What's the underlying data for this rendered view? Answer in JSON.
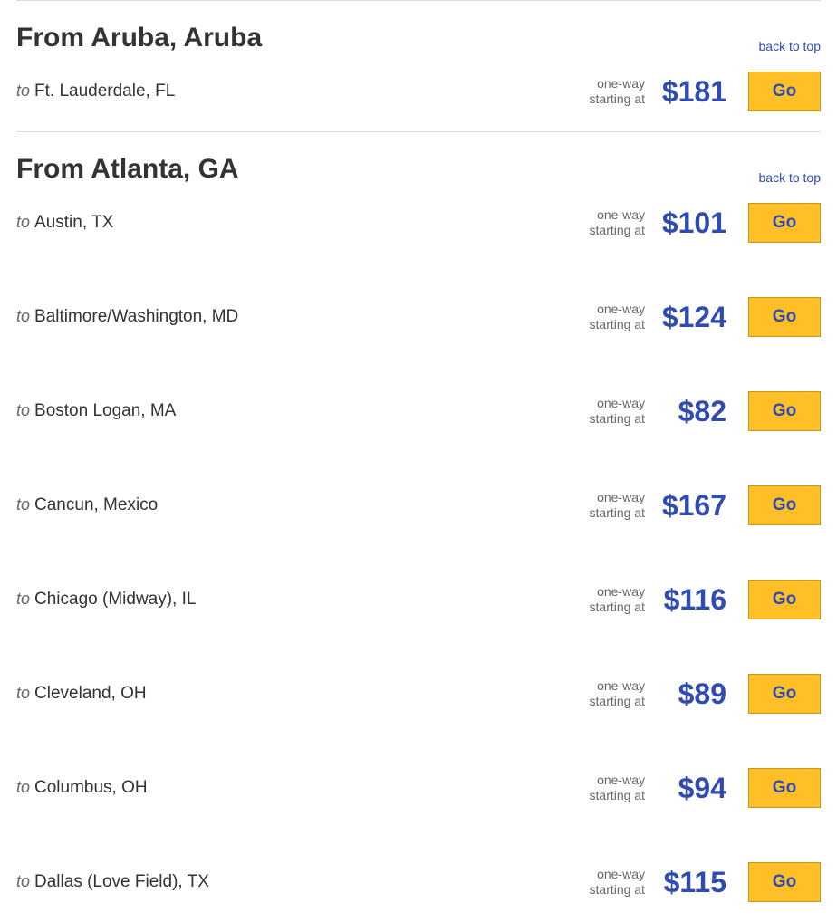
{
  "labels": {
    "from_prefix": "From ",
    "to_prefix": "to ",
    "back_to_top": "back to top",
    "one_way": "one-way",
    "starting_at": "starting at",
    "go_button": "Go"
  },
  "colors": {
    "price_color": "#304cb2",
    "link_color": "#304cb2",
    "button_bg": "#ffbf27",
    "button_border": "#c9971e",
    "divider": "#dcdcdc",
    "text_primary": "#333333",
    "text_secondary": "#666666"
  },
  "sections": [
    {
      "origin": "Aruba, Aruba",
      "routes": [
        {
          "destination": "Ft. Lauderdale, FL",
          "price": "$181"
        }
      ]
    },
    {
      "origin": "Atlanta, GA",
      "routes": [
        {
          "destination": "Austin, TX",
          "price": "$101"
        },
        {
          "destination": "Baltimore/Washington, MD",
          "price": "$124"
        },
        {
          "destination": "Boston Logan, MA",
          "price": "$82"
        },
        {
          "destination": "Cancun, Mexico",
          "price": "$167"
        },
        {
          "destination": "Chicago (Midway), IL",
          "price": "$116"
        },
        {
          "destination": "Cleveland, OH",
          "price": "$89"
        },
        {
          "destination": "Columbus, OH",
          "price": "$94"
        },
        {
          "destination": "Dallas (Love Field), TX",
          "price": "$115"
        }
      ]
    }
  ]
}
